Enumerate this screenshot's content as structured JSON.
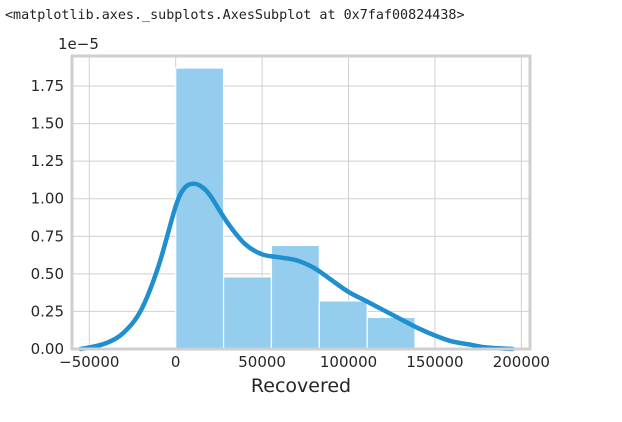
{
  "output_repr": "<matplotlib.axes._subplots.AxesSubplot at 0x7faf00824438>",
  "chart_data": {
    "type": "bar",
    "overlay": "kde-line",
    "title": "",
    "xlabel": "Recovered",
    "ylabel": "",
    "y_scale_label": "1e−5",
    "xlim": [
      -60000,
      205000
    ],
    "ylim": [
      0,
      1.95
    ],
    "x_ticks": [
      -50000,
      0,
      50000,
      100000,
      150000,
      200000
    ],
    "x_tick_labels": [
      "−50000",
      "0",
      "50000",
      "100000",
      "150000",
      "200000"
    ],
    "y_ticks": [
      0,
      0.25,
      0.5,
      0.75,
      1.0,
      1.25,
      1.5,
      1.75
    ],
    "y_tick_labels": [
      "0.00",
      "0.25",
      "0.50",
      "0.75",
      "1.00",
      "1.25",
      "1.50",
      "1.75"
    ],
    "grid": true,
    "legend": "none",
    "histogram": {
      "bin_edges": [
        0,
        27700,
        55400,
        83100,
        110800,
        138500
      ],
      "values": [
        1.87,
        0.48,
        0.69,
        0.32,
        0.21
      ]
    },
    "kde": {
      "x": [
        -55000,
        -50000,
        -40000,
        -30000,
        -20000,
        -10000,
        0,
        5000,
        10000,
        15000,
        20000,
        30000,
        40000,
        50000,
        60000,
        70000,
        80000,
        90000,
        100000,
        110000,
        120000,
        130000,
        140000,
        150000,
        160000,
        170000,
        180000,
        195000
      ],
      "y": [
        0.0,
        0.01,
        0.04,
        0.11,
        0.26,
        0.55,
        0.95,
        1.07,
        1.1,
        1.08,
        1.02,
        0.84,
        0.7,
        0.63,
        0.61,
        0.59,
        0.54,
        0.46,
        0.38,
        0.32,
        0.26,
        0.2,
        0.14,
        0.09,
        0.05,
        0.03,
        0.01,
        0.0
      ]
    },
    "colors": {
      "bars": "#95cdee",
      "line": "#1f8fcf",
      "grid": "#cfcfcf",
      "frame": "#cfcfcf"
    }
  }
}
